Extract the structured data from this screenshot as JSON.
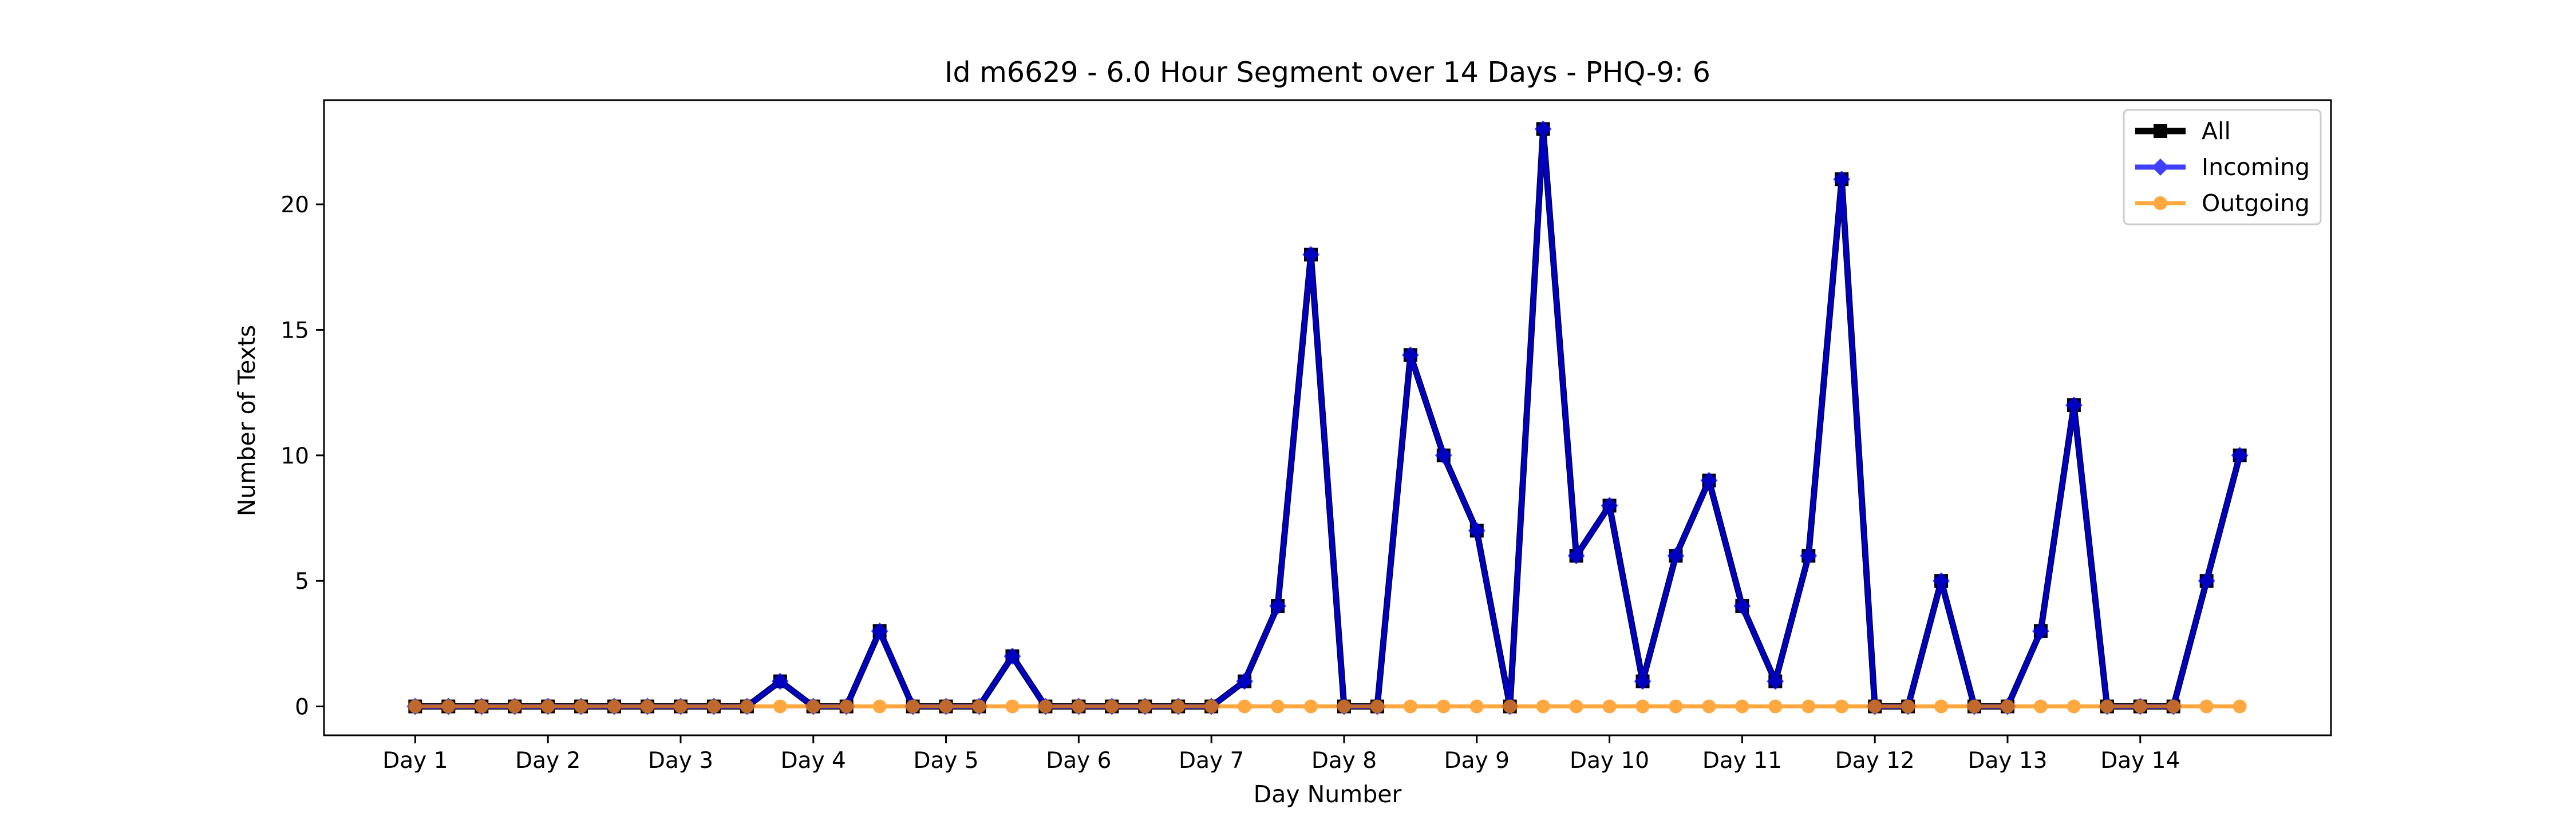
{
  "chart_data": {
    "type": "line",
    "title": "Id m6629 - 6.0 Hour Segment over 14 Days - PHQ-9: 6",
    "xlabel": "Day Number",
    "ylabel": "Number of Texts",
    "x_ticks": [
      {
        "x": 0,
        "label": "Day 1"
      },
      {
        "x": 4,
        "label": "Day 2"
      },
      {
        "x": 8,
        "label": "Day 3"
      },
      {
        "x": 12,
        "label": "Day 4"
      },
      {
        "x": 16,
        "label": "Day 5"
      },
      {
        "x": 20,
        "label": "Day 6"
      },
      {
        "x": 24,
        "label": "Day 7"
      },
      {
        "x": 28,
        "label": "Day 8"
      },
      {
        "x": 32,
        "label": "Day 9"
      },
      {
        "x": 36,
        "label": "Day 10"
      },
      {
        "x": 40,
        "label": "Day 11"
      },
      {
        "x": 44,
        "label": "Day 12"
      },
      {
        "x": 48,
        "label": "Day 13"
      },
      {
        "x": 52,
        "label": "Day 14"
      }
    ],
    "y_ticks": [
      0,
      5,
      10,
      15,
      20
    ],
    "xlim": [
      -2.75,
      57.75
    ],
    "ylim": [
      -1.15,
      24.15
    ],
    "grid": false,
    "legend_position": "top-right",
    "series": [
      {
        "name": "All",
        "color": "#000000",
        "marker": "square",
        "values": [
          0,
          0,
          0,
          0,
          0,
          0,
          0,
          0,
          0,
          0,
          0,
          1,
          0,
          0,
          3,
          0,
          0,
          0,
          2,
          0,
          0,
          0,
          0,
          0,
          0,
          1,
          4,
          18,
          0,
          0,
          14,
          10,
          7,
          0,
          23,
          6,
          8,
          1,
          6,
          9,
          4,
          1,
          6,
          21,
          0,
          0,
          5,
          0,
          0,
          3,
          12,
          0,
          0,
          0,
          5,
          10
        ]
      },
      {
        "name": "Incoming",
        "color": "#0000ff",
        "marker": "diamond",
        "values": [
          0,
          0,
          0,
          0,
          0,
          0,
          0,
          0,
          0,
          0,
          0,
          1,
          0,
          0,
          3,
          0,
          0,
          0,
          2,
          0,
          0,
          0,
          0,
          0,
          0,
          1,
          4,
          18,
          0,
          0,
          14,
          10,
          7,
          0,
          23,
          6,
          8,
          1,
          6,
          9,
          4,
          1,
          6,
          21,
          0,
          0,
          5,
          0,
          0,
          3,
          12,
          0,
          0,
          0,
          5,
          10
        ]
      },
      {
        "name": "Outgoing",
        "color": "#ff8c00",
        "marker": "circle",
        "values": [
          0,
          0,
          0,
          0,
          0,
          0,
          0,
          0,
          0,
          0,
          0,
          0,
          0,
          0,
          0,
          0,
          0,
          0,
          0,
          0,
          0,
          0,
          0,
          0,
          0,
          0,
          0,
          0,
          0,
          0,
          0,
          0,
          0,
          0,
          0,
          0,
          0,
          0,
          0,
          0,
          0,
          0,
          0,
          0,
          0,
          0,
          0,
          0,
          0,
          0,
          0,
          0,
          0,
          0,
          0,
          0
        ]
      }
    ]
  }
}
